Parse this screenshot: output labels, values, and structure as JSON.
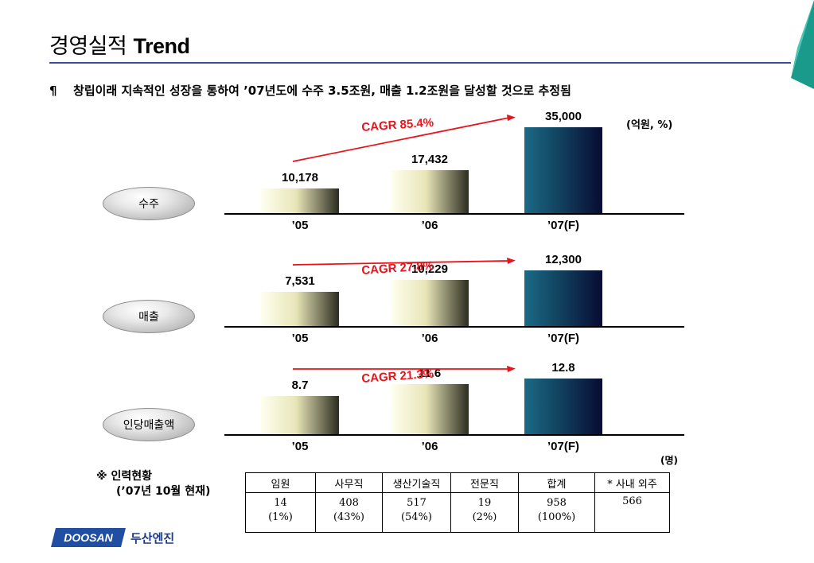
{
  "header": {
    "title_kr": "경영실적",
    "title_en": "Trend",
    "subtitle_bullet": "¶",
    "subtitle": "창립이래 지속적인 성장을 통하여 ’07년도에 수주 3.5조원, 매출 1.2조원을  달성할 것으로 추정됨",
    "unit": "(억원, %)"
  },
  "colors": {
    "rule": "#3b4fa0",
    "cagr": "#e8141c",
    "corner_teal": "#1a9a8a"
  },
  "chart_data": [
    {
      "type": "bar",
      "title": "수주",
      "categories": [
        "’05",
        "’06",
        "’07(F)"
      ],
      "values": [
        10178,
        17432,
        35000
      ],
      "value_labels": [
        "10,178",
        "17,432",
        "35,000"
      ],
      "annotation": "CAGR 85.4%"
    },
    {
      "type": "bar",
      "title": "매출",
      "categories": [
        "’05",
        "’06",
        "’07(F)"
      ],
      "values": [
        7531,
        10229,
        12300
      ],
      "value_labels": [
        "7,531",
        "10,229",
        "12,300"
      ],
      "annotation": "CAGR 27.8%"
    },
    {
      "type": "bar",
      "title": "인당매출액",
      "categories": [
        "’05",
        "’06",
        "’07(F)"
      ],
      "values": [
        8.7,
        11.6,
        12.8
      ],
      "value_labels": [
        "8.7",
        "11.6",
        "12.8"
      ],
      "annotation": "CAGR 21.3%"
    }
  ],
  "workforce": {
    "note": "※ 인력현황",
    "as_of": "(’07년 10월 현재)",
    "unit": "(명)",
    "headers": [
      "임원",
      "사무직",
      "생산기술직",
      "전문직",
      "합계",
      "* 사내 외주"
    ],
    "counts": [
      "14",
      "408",
      "517",
      "19",
      "958",
      "566"
    ],
    "shares": [
      "(1%)",
      "(43%)",
      "(54%)",
      "(2%)",
      "(100%)",
      ""
    ]
  },
  "footer": {
    "logo_mark": "DOOSAN",
    "logo_text": "두산엔진"
  }
}
